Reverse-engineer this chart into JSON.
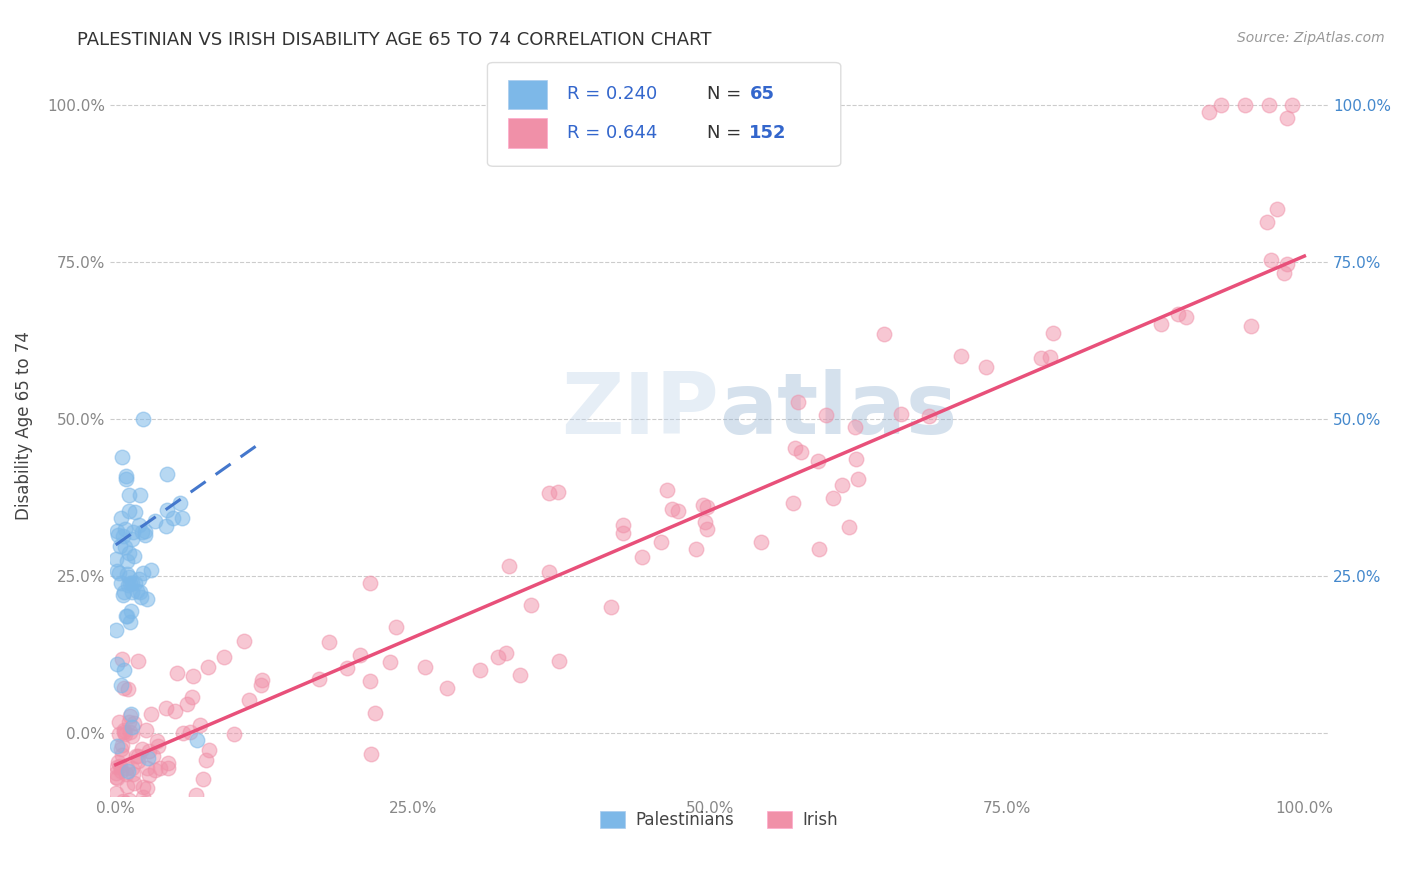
{
  "title": "PALESTINIAN VS IRISH DISABILITY AGE 65 TO 74 CORRELATION CHART",
  "source": "Source: ZipAtlas.com",
  "ylabel": "Disability Age 65 to 74",
  "color_palestinian": "#7DB8E8",
  "color_irish": "#F090A8",
  "color_line_palestinian": "#4477CC",
  "color_line_irish": "#E8507A",
  "color_grid": "#CCCCCC",
  "watermark_color": "#B8D0E8",
  "legend_text_color": "#3366CC",
  "right_axis_color": "#4488CC",
  "title_color": "#333333",
  "source_color": "#999999",
  "tick_color": "#888888",
  "pal_R": 0.24,
  "pal_N": 65,
  "irish_R": 0.644,
  "irish_N": 152,
  "pal_line_x0": 0.0,
  "pal_line_x1": 0.12,
  "pal_line_y0": 0.3,
  "pal_line_y1": 0.46,
  "irish_line_x0": 0.0,
  "irish_line_x1": 1.0,
  "irish_line_y0": -0.05,
  "irish_line_y1": 0.76,
  "ylim_low": -0.1,
  "ylim_high": 1.08,
  "xlim_low": -0.005,
  "xlim_high": 1.02
}
